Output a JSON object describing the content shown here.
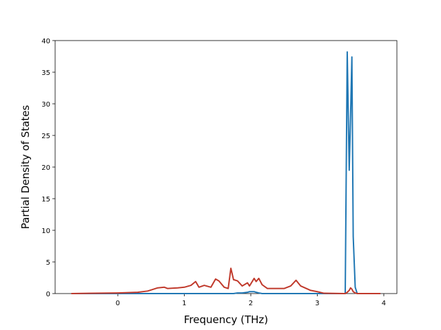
{
  "chart_data": {
    "type": "line",
    "xlabel": "Frequency (THz)",
    "ylabel": "Partial Density of States",
    "x": [
      -0.7,
      0,
      0.3,
      0.45,
      0.6,
      0.7,
      0.75,
      0.9,
      1.0,
      1.1,
      1.17,
      1.22,
      1.3,
      1.4,
      1.47,
      1.52,
      1.6,
      1.66,
      1.7,
      1.74,
      1.8,
      1.87,
      1.95,
      1.98,
      2.05,
      2.08,
      2.12,
      2.17,
      2.25,
      2.5,
      2.6,
      2.68,
      2.75,
      2.9,
      3.0,
      3.1,
      3.4,
      3.42,
      3.45,
      3.48,
      3.5,
      3.52,
      3.54,
      3.57,
      3.6,
      3.95
    ],
    "series": [
      {
        "color": "#1f77b4",
        "values": [
          0,
          0,
          0,
          0,
          0,
          0,
          0,
          0,
          0,
          0,
          0,
          0,
          0,
          0,
          0,
          0,
          0,
          0,
          0,
          0,
          0.1,
          0.1,
          0.2,
          0.3,
          0.3,
          0.2,
          0.1,
          0,
          0,
          0,
          0,
          0,
          0,
          0,
          0,
          0,
          0,
          0,
          38.2,
          19.5,
          28,
          37.4,
          9,
          1,
          0,
          0
        ]
      },
      {
        "color": "#c0392b",
        "values": [
          0,
          0.1,
          0.2,
          0.4,
          0.9,
          1.0,
          0.8,
          0.9,
          1.0,
          1.3,
          1.9,
          1.0,
          1.3,
          1.0,
          2.3,
          2.0,
          1.0,
          0.8,
          4.0,
          2.2,
          2.0,
          1.2,
          1.7,
          1.2,
          2.4,
          1.9,
          2.4,
          1.4,
          0.8,
          0.8,
          1.2,
          2.1,
          1.2,
          0.5,
          0.3,
          0.05,
          0,
          0,
          0.2,
          0.5,
          0.9,
          0.7,
          0.3,
          0.1,
          0,
          0
        ]
      }
    ],
    "xlim": [
      -0.943,
      4.197
    ],
    "ylim": [
      0,
      40
    ],
    "xticks": [
      0,
      1,
      2,
      3,
      4
    ],
    "yticks": [
      0,
      5,
      10,
      15,
      20,
      25,
      30,
      35,
      40
    ],
    "grid": false
  }
}
